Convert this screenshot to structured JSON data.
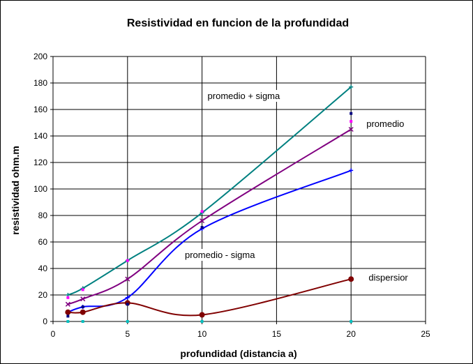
{
  "chart_data": {
    "type": "line",
    "title": "Resistividad en funcion de la profundidad",
    "xlabel": "profundidad (distancia a)",
    "ylabel": "resistividad ohm.m",
    "xlim": [
      0,
      25
    ],
    "ylim": [
      0,
      200
    ],
    "x_ticks": [
      0,
      5,
      10,
      15,
      20,
      25
    ],
    "y_ticks": [
      0,
      20,
      40,
      60,
      80,
      100,
      120,
      140,
      160,
      180,
      200
    ],
    "x_tick_labels": [
      "0",
      "5",
      "10",
      "15",
      "20",
      "25"
    ],
    "y_tick_labels": [
      "0",
      "20",
      "40",
      "60",
      "80",
      "100",
      "120",
      "140",
      "160",
      "180",
      "200"
    ],
    "grid": true,
    "legend": "none",
    "series": [
      {
        "key": "sigma_plus",
        "color": "#008080",
        "x": [
          1,
          2,
          5,
          10,
          20
        ],
        "y": [
          20,
          25,
          46,
          82,
          177
        ]
      },
      {
        "key": "mean",
        "color": "#800080",
        "x": [
          1,
          2,
          5,
          10,
          20
        ],
        "y": [
          13,
          17,
          32,
          76,
          145
        ]
      },
      {
        "key": "sigma_minus",
        "color": "#0000ff",
        "x": [
          1,
          2,
          5,
          10,
          20
        ],
        "y": [
          7,
          11,
          18,
          70,
          114
        ]
      },
      {
        "key": "dispersion",
        "color": "#800000",
        "x": [
          1,
          2,
          5,
          10,
          20
        ],
        "y": [
          7,
          7,
          14,
          5,
          32
        ]
      }
    ],
    "scatter_marks": [
      {
        "color": "#ff00ff",
        "x": [
          1,
          2,
          5,
          10,
          20
        ],
        "y": [
          18,
          24,
          46,
          83,
          151
        ]
      },
      {
        "color": "#000080",
        "x": [
          1,
          2,
          5,
          10,
          20
        ],
        "y": [
          4,
          11,
          13,
          71,
          157
        ]
      },
      {
        "color": "#00c0c0",
        "x": [
          1,
          2,
          5,
          10,
          20
        ],
        "y": [
          0,
          0,
          0,
          0,
          0
        ]
      }
    ],
    "annotations": [
      {
        "text": "promedio + sigma",
        "x": 12.8,
        "y": 170
      },
      {
        "text": "promedio",
        "x": 22.3,
        "y": 149
      },
      {
        "text": "promedio - sigma",
        "x": 11.2,
        "y": 50
      },
      {
        "text": "dispersior",
        "x": 22.5,
        "y": 33
      }
    ]
  }
}
